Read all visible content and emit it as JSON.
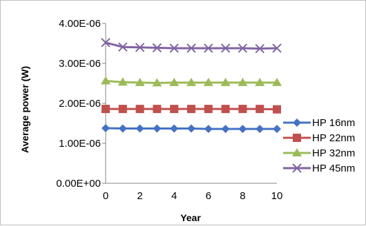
{
  "chart_data": {
    "type": "line",
    "title": "",
    "xlabel": "Year",
    "ylabel": "Average power (W)",
    "x": [
      0,
      1,
      2,
      3,
      4,
      5,
      6,
      7,
      8,
      9,
      10
    ],
    "xlim": [
      0,
      10
    ],
    "ylim": [
      0,
      4e-06
    ],
    "x_ticks": [
      0,
      2,
      4,
      6,
      8,
      10
    ],
    "x_tick_labels": [
      "0",
      "2",
      "4",
      "6",
      "8",
      "10"
    ],
    "y_ticks": [
      0,
      1e-06,
      2e-06,
      3e-06,
      4e-06
    ],
    "y_tick_labels": [
      "0.00E+00",
      "1.00E-06",
      "2.00E-06",
      "3.00E-06",
      "4.00E-06"
    ],
    "grid": false,
    "legend_position": "right",
    "series": [
      {
        "name": "HP 16nm",
        "color": "#4472c4",
        "marker": "diamond",
        "values": [
          1.38e-06,
          1.37e-06,
          1.37e-06,
          1.37e-06,
          1.37e-06,
          1.37e-06,
          1.36e-06,
          1.36e-06,
          1.36e-06,
          1.36e-06,
          1.36e-06
        ]
      },
      {
        "name": "HP 22nm",
        "color": "#c0504d",
        "marker": "square",
        "values": [
          1.86e-06,
          1.86e-06,
          1.86e-06,
          1.86e-06,
          1.86e-06,
          1.86e-06,
          1.86e-06,
          1.86e-06,
          1.86e-06,
          1.86e-06,
          1.85e-06
        ]
      },
      {
        "name": "HP 32nm",
        "color": "#9bbb59",
        "marker": "triangle",
        "values": [
          2.56e-06,
          2.53e-06,
          2.52e-06,
          2.51e-06,
          2.52e-06,
          2.52e-06,
          2.52e-06,
          2.52e-06,
          2.52e-06,
          2.52e-06,
          2.52e-06
        ]
      },
      {
        "name": "HP 45nm",
        "color": "#8064a2",
        "marker": "x",
        "values": [
          3.52e-06,
          3.41e-06,
          3.4e-06,
          3.39e-06,
          3.38e-06,
          3.38e-06,
          3.38e-06,
          3.38e-06,
          3.38e-06,
          3.37e-06,
          3.38e-06
        ]
      }
    ]
  }
}
